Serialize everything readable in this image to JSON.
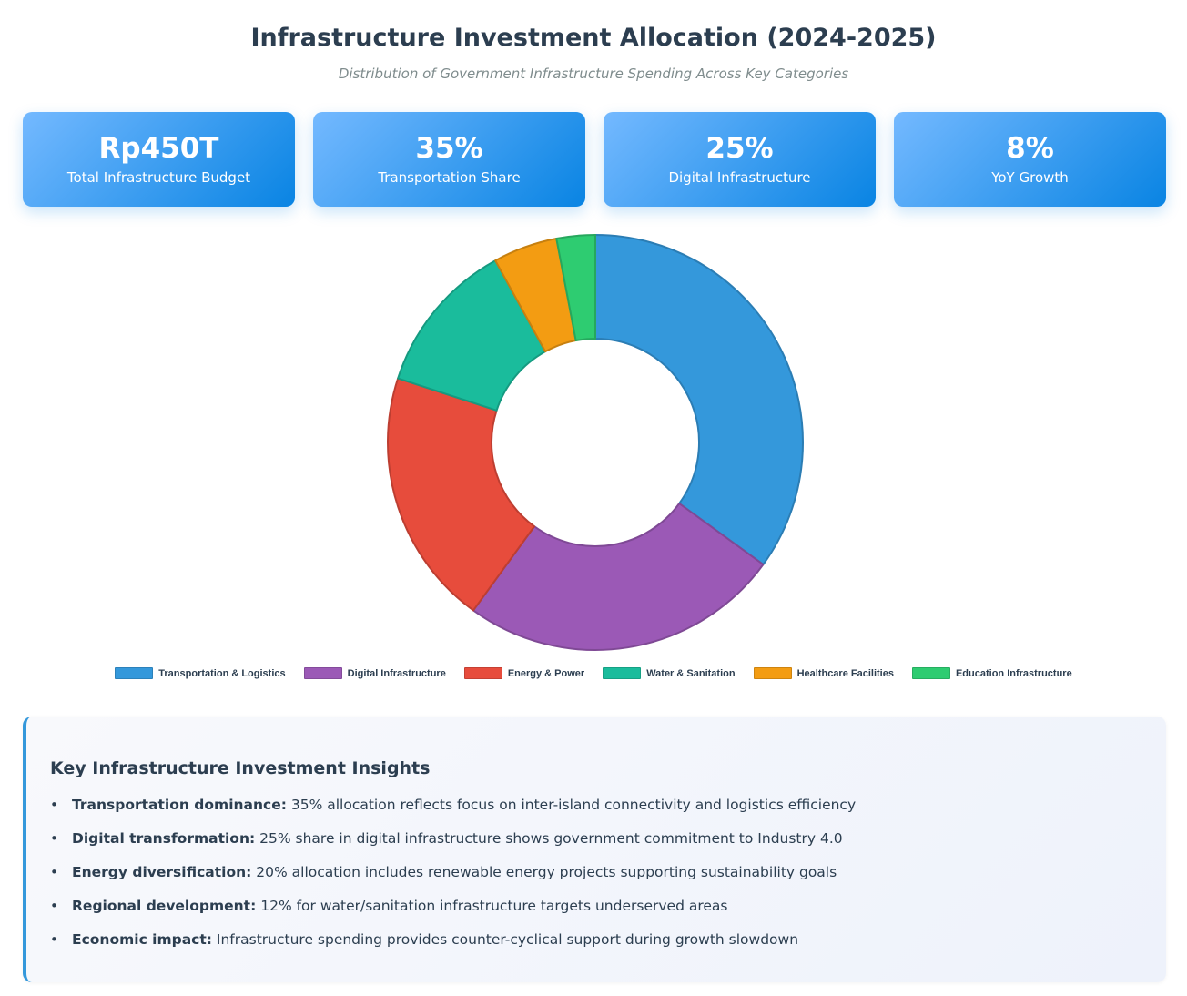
{
  "header": {
    "title": "Infrastructure Investment Allocation (2024-2025)",
    "subtitle": "Distribution of Government Infrastructure Spending Across Key Categories"
  },
  "cards": [
    {
      "value": "Rp450T",
      "label": "Total Infrastructure Budget"
    },
    {
      "value": "35%",
      "label": "Transportation Share"
    },
    {
      "value": "25%",
      "label": "Digital Infrastructure"
    },
    {
      "value": "8%",
      "label": "YoY Growth"
    }
  ],
  "chart_data": {
    "type": "pie",
    "donut": true,
    "categories": [
      "Transportation & Logistics",
      "Digital Infrastructure",
      "Energy & Power",
      "Water & Sanitation",
      "Healthcare Facilities",
      "Education Infrastructure"
    ],
    "values": [
      35,
      25,
      20,
      12,
      5,
      3
    ],
    "colors": [
      "#3498db",
      "#9b59b6",
      "#e74c3c",
      "#1abc9c",
      "#f39c12",
      "#2ecc71"
    ],
    "legend": "bottom"
  },
  "insights": {
    "title": "Key Infrastructure Investment Insights",
    "items": [
      {
        "label": "Transportation dominance:",
        "text": " 35% allocation reflects focus on inter-island connectivity and logistics efficiency"
      },
      {
        "label": "Digital transformation:",
        "text": " 25% share in digital infrastructure shows government commitment to Industry 4.0"
      },
      {
        "label": "Energy diversification:",
        "text": " 20% allocation includes renewable energy projects supporting sustainability goals"
      },
      {
        "label": "Regional development:",
        "text": " 12% for water/sanitation infrastructure targets underserved areas"
      },
      {
        "label": "Economic impact:",
        "text": " Infrastructure spending provides counter-cyclical support during growth slowdown"
      }
    ]
  }
}
